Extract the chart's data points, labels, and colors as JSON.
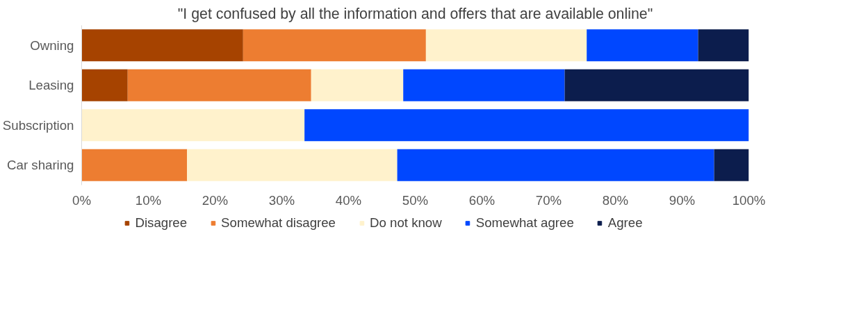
{
  "chart_data": {
    "type": "bar",
    "orientation": "horizontal",
    "stacked": true,
    "title": "\"I get confused by all the information and offers that are available online\"",
    "categories": [
      "Owning",
      "Leasing",
      "Subscription",
      "Car sharing"
    ],
    "series": [
      {
        "name": "Disagree",
        "color": "#a64300",
        "values": [
          24.2,
          6.9,
          0,
          0
        ]
      },
      {
        "name": "Somewhat disagree",
        "color": "#ed7d31",
        "values": [
          27.4,
          27.5,
          0,
          15.8
        ]
      },
      {
        "name": "Do not know",
        "color": "#fff2cc",
        "values": [
          24.1,
          13.8,
          33.4,
          31.5
        ]
      },
      {
        "name": "Somewhat agree",
        "color": "#0047ff",
        "values": [
          16.7,
          24.2,
          66.6,
          47.5
        ]
      },
      {
        "name": "Agree",
        "color": "#0c1d4d",
        "values": [
          7.6,
          27.6,
          0,
          5.2
        ]
      }
    ],
    "xlim": [
      0,
      100
    ],
    "xticks": [
      {
        "value": 0,
        "label": "0%"
      },
      {
        "value": 10,
        "label": "10%"
      },
      {
        "value": 20,
        "label": "20%"
      },
      {
        "value": 30,
        "label": "30%"
      },
      {
        "value": 40,
        "label": "40%"
      },
      {
        "value": 50,
        "label": "50%"
      },
      {
        "value": 60,
        "label": "60%"
      },
      {
        "value": 70,
        "label": "70%"
      },
      {
        "value": 80,
        "label": "80%"
      },
      {
        "value": 90,
        "label": "90%"
      },
      {
        "value": 100,
        "label": "100%"
      }
    ],
    "grid": false,
    "legend": "bottom"
  }
}
